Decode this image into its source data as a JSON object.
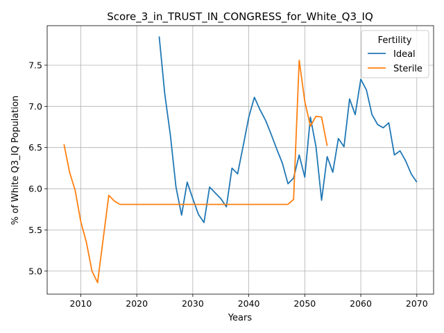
{
  "chart_data": {
    "type": "line",
    "title": "Score_3_in_TRUST_IN_CONGRESS_for_White_Q3_IQ",
    "xlabel": "Years",
    "ylabel": "% of White Q3_IQ Population",
    "xlim": [
      2004,
      2073
    ],
    "ylim": [
      4.72,
      7.98
    ],
    "xticks": [
      2010,
      2020,
      2030,
      2040,
      2050,
      2060,
      2070
    ],
    "yticks": [
      5.0,
      5.5,
      6.0,
      6.5,
      7.0,
      7.5
    ],
    "ytick_labels": [
      "5.0",
      "5.5",
      "6.0",
      "6.5",
      "7.0",
      "7.5"
    ],
    "grid": true,
    "legend": {
      "title": "Fertility",
      "placement": "upper right"
    },
    "series": [
      {
        "name": "Ideal",
        "color": "#1f77b4",
        "x": [
          2024,
          2025,
          2026,
          2027,
          2028,
          2029,
          2030,
          2031,
          2032,
          2033,
          2034,
          2035,
          2036,
          2037,
          2038,
          2039,
          2040,
          2041,
          2042,
          2043,
          2044,
          2045,
          2046,
          2047,
          2048,
          2049,
          2050,
          2051,
          2052,
          2053,
          2054,
          2055,
          2056,
          2057,
          2058,
          2059,
          2060,
          2061,
          2062,
          2063,
          2064,
          2065,
          2066,
          2067,
          2068,
          2069,
          2070
        ],
        "y": [
          7.85,
          7.15,
          6.65,
          6.02,
          5.68,
          6.08,
          5.88,
          5.69,
          5.59,
          6.02,
          5.95,
          5.88,
          5.78,
          6.25,
          6.18,
          6.52,
          6.87,
          7.11,
          6.96,
          6.83,
          6.66,
          6.48,
          6.31,
          6.06,
          6.13,
          6.41,
          6.14,
          6.87,
          6.51,
          5.86,
          6.39,
          6.2,
          6.61,
          6.51,
          7.09,
          6.9,
          7.33,
          7.2,
          6.9,
          6.78,
          6.74,
          6.8,
          6.41,
          6.46,
          6.34,
          6.18,
          6.08
        ]
      },
      {
        "name": "Sterile",
        "color": "#ff7f0e",
        "x": [
          2007,
          2008,
          2009,
          2010,
          2011,
          2012,
          2013,
          2014,
          2015,
          2016,
          2017,
          2018,
          2019,
          2020,
          2021,
          2022,
          2023,
          2024,
          2025,
          2026,
          2027,
          2028,
          2029,
          2030,
          2031,
          2032,
          2033,
          2034,
          2035,
          2036,
          2037,
          2038,
          2039,
          2040,
          2041,
          2042,
          2043,
          2044,
          2045,
          2046,
          2047,
          2048,
          2049,
          2050,
          2051,
          2052,
          2053,
          2054
        ],
        "y": [
          6.54,
          6.2,
          5.98,
          5.6,
          5.35,
          5.0,
          4.86,
          5.39,
          5.92,
          5.85,
          5.81,
          5.81,
          5.81,
          5.81,
          5.81,
          5.81,
          5.81,
          5.81,
          5.81,
          5.81,
          5.81,
          5.81,
          5.81,
          5.81,
          5.81,
          5.81,
          5.81,
          5.81,
          5.81,
          5.81,
          5.81,
          5.81,
          5.81,
          5.81,
          5.81,
          5.81,
          5.81,
          5.81,
          5.81,
          5.81,
          5.81,
          5.87,
          7.56,
          7.06,
          6.76,
          6.88,
          6.87,
          6.52
        ]
      }
    ]
  }
}
